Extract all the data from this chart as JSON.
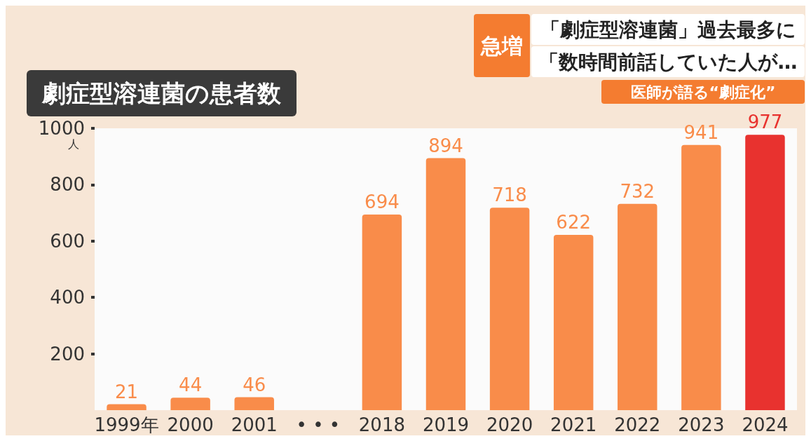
{
  "chart_data": {
    "type": "bar",
    "title": "劇症型溶連菌の患者数",
    "ylabel": "人",
    "annotations": [
      "急増",
      "「劇症型溶連菌」過去最多に",
      "「数時間前話していた人が…",
      "医師が語る“劇症化”"
    ],
    "categories": [
      "1999年",
      "2000",
      "2001",
      "• • •",
      "2018",
      "2019",
      "2020",
      "2021",
      "2022",
      "2023",
      "2024"
    ],
    "values": [
      21,
      44,
      46,
      null,
      694,
      894,
      718,
      622,
      732,
      941,
      977
    ],
    "colors": [
      "#f98c4a",
      "#f98c4a",
      "#f98c4a",
      null,
      "#f98c4a",
      "#f98c4a",
      "#f98c4a",
      "#f98c4a",
      "#f98c4a",
      "#f98c4a",
      "#e8322f"
    ],
    "data_labels": true,
    "ylim": [
      0,
      1000
    ],
    "yticks": [
      200,
      400,
      600,
      800,
      1000
    ],
    "grid": false
  }
}
